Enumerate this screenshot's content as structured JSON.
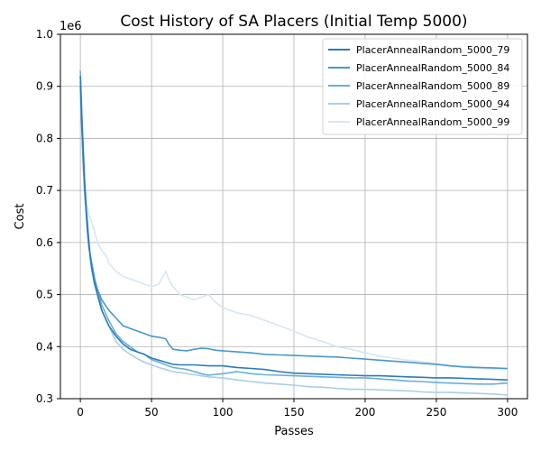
{
  "chart_data": {
    "type": "line",
    "title": "Cost History of SA Placers (Initial Temp 5000)",
    "xlabel": "Passes",
    "ylabel": "Cost",
    "offset_label": "1e6",
    "xlim": [
      -14,
      314
    ],
    "ylim": [
      0.3,
      1.0
    ],
    "x_ticks": [
      0,
      50,
      100,
      150,
      200,
      250,
      300
    ],
    "y_ticks": [
      0.3,
      0.4,
      0.5,
      0.6,
      0.7,
      0.8,
      0.9,
      1.0
    ],
    "grid": true,
    "legend_position": "top-right",
    "series": [
      {
        "name": "PlacerAnnealRandom_5000_79",
        "color": "#2b7bba",
        "points": [
          [
            0,
            0.92
          ],
          [
            1,
            0.84
          ],
          [
            2,
            0.78
          ],
          [
            3,
            0.72
          ],
          [
            4,
            0.67
          ],
          [
            5,
            0.63
          ],
          [
            6,
            0.6
          ],
          [
            7,
            0.57
          ],
          [
            8,
            0.55
          ],
          [
            10,
            0.52
          ],
          [
            12,
            0.5
          ],
          [
            15,
            0.47
          ],
          [
            20,
            0.44
          ],
          [
            25,
            0.42
          ],
          [
            30,
            0.405
          ],
          [
            35,
            0.395
          ],
          [
            40,
            0.39
          ],
          [
            45,
            0.385
          ],
          [
            50,
            0.378
          ],
          [
            55,
            0.374
          ],
          [
            60,
            0.37
          ],
          [
            65,
            0.366
          ],
          [
            70,
            0.365
          ],
          [
            80,
            0.365
          ],
          [
            90,
            0.363
          ],
          [
            100,
            0.363
          ],
          [
            110,
            0.36
          ],
          [
            120,
            0.358
          ],
          [
            130,
            0.356
          ],
          [
            140,
            0.352
          ],
          [
            150,
            0.349
          ],
          [
            160,
            0.348
          ],
          [
            170,
            0.347
          ],
          [
            180,
            0.346
          ],
          [
            190,
            0.345
          ],
          [
            200,
            0.344
          ],
          [
            210,
            0.344
          ],
          [
            220,
            0.343
          ],
          [
            230,
            0.342
          ],
          [
            240,
            0.341
          ],
          [
            250,
            0.34
          ],
          [
            260,
            0.34
          ],
          [
            270,
            0.339
          ],
          [
            280,
            0.338
          ],
          [
            290,
            0.337
          ],
          [
            300,
            0.336
          ]
        ]
      },
      {
        "name": "PlacerAnnealRandom_5000_84",
        "color": "#4a98c9",
        "points": [
          [
            0,
            0.9
          ],
          [
            1,
            0.82
          ],
          [
            2,
            0.75
          ],
          [
            3,
            0.7
          ],
          [
            4,
            0.66
          ],
          [
            5,
            0.62
          ],
          [
            6,
            0.59
          ],
          [
            8,
            0.56
          ],
          [
            10,
            0.53
          ],
          [
            12,
            0.51
          ],
          [
            15,
            0.49
          ],
          [
            20,
            0.47
          ],
          [
            25,
            0.455
          ],
          [
            30,
            0.44
          ],
          [
            35,
            0.435
          ],
          [
            40,
            0.43
          ],
          [
            45,
            0.425
          ],
          [
            50,
            0.42
          ],
          [
            55,
            0.418
          ],
          [
            60,
            0.415
          ],
          [
            62,
            0.405
          ],
          [
            65,
            0.395
          ],
          [
            70,
            0.393
          ],
          [
            75,
            0.392
          ],
          [
            80,
            0.395
          ],
          [
            85,
            0.397
          ],
          [
            90,
            0.396
          ],
          [
            95,
            0.393
          ],
          [
            100,
            0.392
          ],
          [
            110,
            0.39
          ],
          [
            120,
            0.388
          ],
          [
            130,
            0.385
          ],
          [
            140,
            0.384
          ],
          [
            150,
            0.383
          ],
          [
            160,
            0.382
          ],
          [
            170,
            0.381
          ],
          [
            180,
            0.38
          ],
          [
            190,
            0.378
          ],
          [
            200,
            0.376
          ],
          [
            210,
            0.374
          ],
          [
            220,
            0.372
          ],
          [
            230,
            0.37
          ],
          [
            240,
            0.368
          ],
          [
            250,
            0.366
          ],
          [
            260,
            0.363
          ],
          [
            270,
            0.361
          ],
          [
            280,
            0.36
          ],
          [
            290,
            0.359
          ],
          [
            300,
            0.358
          ]
        ]
      },
      {
        "name": "PlacerAnnealRandom_5000_89",
        "color": "#6aaed6",
        "points": [
          [
            0,
            0.93
          ],
          [
            1,
            0.85
          ],
          [
            2,
            0.77
          ],
          [
            3,
            0.71
          ],
          [
            4,
            0.67
          ],
          [
            5,
            0.64
          ],
          [
            6,
            0.6
          ],
          [
            7,
            0.57
          ],
          [
            8,
            0.56
          ],
          [
            10,
            0.53
          ],
          [
            12,
            0.51
          ],
          [
            15,
            0.48
          ],
          [
            20,
            0.45
          ],
          [
            25,
            0.425
          ],
          [
            30,
            0.41
          ],
          [
            35,
            0.4
          ],
          [
            40,
            0.39
          ],
          [
            45,
            0.385
          ],
          [
            50,
            0.375
          ],
          [
            55,
            0.37
          ],
          [
            60,
            0.365
          ],
          [
            65,
            0.36
          ],
          [
            70,
            0.358
          ],
          [
            75,
            0.356
          ],
          [
            80,
            0.352
          ],
          [
            85,
            0.348
          ],
          [
            90,
            0.345
          ],
          [
            100,
            0.348
          ],
          [
            110,
            0.352
          ],
          [
            120,
            0.348
          ],
          [
            130,
            0.346
          ],
          [
            140,
            0.345
          ],
          [
            150,
            0.344
          ],
          [
            160,
            0.343
          ],
          [
            170,
            0.342
          ],
          [
            180,
            0.341
          ],
          [
            190,
            0.34
          ],
          [
            200,
            0.34
          ],
          [
            210,
            0.338
          ],
          [
            220,
            0.336
          ],
          [
            230,
            0.334
          ],
          [
            240,
            0.333
          ],
          [
            250,
            0.331
          ],
          [
            260,
            0.33
          ],
          [
            270,
            0.329
          ],
          [
            280,
            0.328
          ],
          [
            290,
            0.328
          ],
          [
            300,
            0.33
          ]
        ]
      },
      {
        "name": "PlacerAnnealRandom_5000_94",
        "color": "#a9cfe5",
        "points": [
          [
            0,
            0.91
          ],
          [
            1,
            0.83
          ],
          [
            2,
            0.76
          ],
          [
            3,
            0.7
          ],
          [
            4,
            0.66
          ],
          [
            5,
            0.62
          ],
          [
            6,
            0.59
          ],
          [
            8,
            0.56
          ],
          [
            10,
            0.53
          ],
          [
            12,
            0.5
          ],
          [
            15,
            0.47
          ],
          [
            20,
            0.44
          ],
          [
            25,
            0.41
          ],
          [
            30,
            0.395
          ],
          [
            35,
            0.385
          ],
          [
            40,
            0.377
          ],
          [
            45,
            0.37
          ],
          [
            50,
            0.365
          ],
          [
            55,
            0.36
          ],
          [
            60,
            0.356
          ],
          [
            65,
            0.352
          ],
          [
            70,
            0.35
          ],
          [
            80,
            0.346
          ],
          [
            90,
            0.342
          ],
          [
            100,
            0.34
          ],
          [
            110,
            0.336
          ],
          [
            120,
            0.333
          ],
          [
            130,
            0.33
          ],
          [
            140,
            0.328
          ],
          [
            150,
            0.326
          ],
          [
            160,
            0.323
          ],
          [
            170,
            0.322
          ],
          [
            180,
            0.32
          ],
          [
            190,
            0.318
          ],
          [
            200,
            0.318
          ],
          [
            210,
            0.317
          ],
          [
            220,
            0.316
          ],
          [
            230,
            0.315
          ],
          [
            240,
            0.313
          ],
          [
            250,
            0.312
          ],
          [
            260,
            0.312
          ],
          [
            270,
            0.311
          ],
          [
            280,
            0.31
          ],
          [
            290,
            0.309
          ],
          [
            300,
            0.307
          ]
        ]
      },
      {
        "name": "PlacerAnnealRandom_5000_99",
        "color": "#d6e7f4",
        "points": [
          [
            0,
            0.9
          ],
          [
            1,
            0.82
          ],
          [
            2,
            0.76
          ],
          [
            3,
            0.72
          ],
          [
            4,
            0.69
          ],
          [
            5,
            0.67
          ],
          [
            6,
            0.655
          ],
          [
            7,
            0.645
          ],
          [
            8,
            0.64
          ],
          [
            10,
            0.62
          ],
          [
            12,
            0.6
          ],
          [
            15,
            0.585
          ],
          [
            18,
            0.575
          ],
          [
            20,
            0.56
          ],
          [
            25,
            0.545
          ],
          [
            30,
            0.535
          ],
          [
            35,
            0.53
          ],
          [
            40,
            0.525
          ],
          [
            45,
            0.52
          ],
          [
            50,
            0.515
          ],
          [
            55,
            0.52
          ],
          [
            60,
            0.545
          ],
          [
            62,
            0.53
          ],
          [
            65,
            0.515
          ],
          [
            70,
            0.5
          ],
          [
            75,
            0.495
          ],
          [
            80,
            0.49
          ],
          [
            85,
            0.495
          ],
          [
            90,
            0.5
          ],
          [
            95,
            0.485
          ],
          [
            100,
            0.475
          ],
          [
            110,
            0.465
          ],
          [
            120,
            0.46
          ],
          [
            130,
            0.45
          ],
          [
            140,
            0.44
          ],
          [
            150,
            0.43
          ],
          [
            160,
            0.418
          ],
          [
            170,
            0.41
          ],
          [
            180,
            0.4
          ],
          [
            190,
            0.395
          ],
          [
            200,
            0.388
          ],
          [
            210,
            0.382
          ],
          [
            220,
            0.378
          ],
          [
            230,
            0.374
          ],
          [
            240,
            0.371
          ],
          [
            250,
            0.368
          ],
          [
            260,
            0.362
          ],
          [
            270,
            0.36
          ],
          [
            280,
            0.358
          ],
          [
            290,
            0.357
          ],
          [
            300,
            0.357
          ]
        ]
      }
    ]
  }
}
